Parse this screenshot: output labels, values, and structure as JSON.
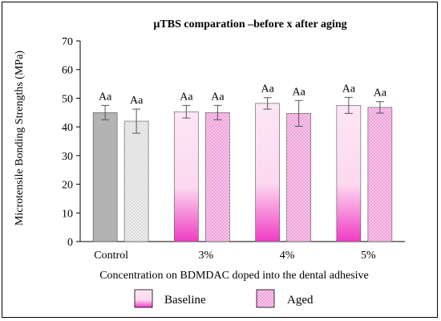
{
  "chart_data": {
    "type": "bar",
    "title": "µTBS comparation –before x after aging",
    "xlabel": "Concentration on BDMDAC doped into the dental adhesive",
    "ylabel": "Microtensile Bonding Strengths (MPa)",
    "ylim": [
      0,
      70
    ],
    "yticks": [
      0,
      10,
      20,
      30,
      40,
      50,
      60,
      70
    ],
    "categories": [
      "Control",
      "3%",
      "4%",
      "5%"
    ],
    "series": [
      {
        "name": "Baseline",
        "values": [
          45.0,
          45.3,
          48.2,
          47.5
        ],
        "errors": [
          2.5,
          2.2,
          2.0,
          2.8
        ],
        "labels": [
          "Aa",
          "Aa",
          "Aa",
          "Aa"
        ]
      },
      {
        "name": "Aged",
        "values": [
          42.0,
          45.0,
          44.7,
          46.8
        ],
        "errors": [
          4.2,
          2.5,
          4.5,
          2.0
        ],
        "labels": [
          "Aa",
          "Aa",
          "Aa",
          "Aa"
        ]
      }
    ],
    "legend_position": "bottom",
    "grid": false,
    "colors": {
      "control_baseline": "#b3b3b3",
      "control_aged": "#d9d9d9",
      "baseline_top": "#fbe3f3",
      "baseline_bottom": "#f03cc4",
      "aged_fill": "#f2a7de",
      "aged_hatch": "#ffffff"
    }
  }
}
